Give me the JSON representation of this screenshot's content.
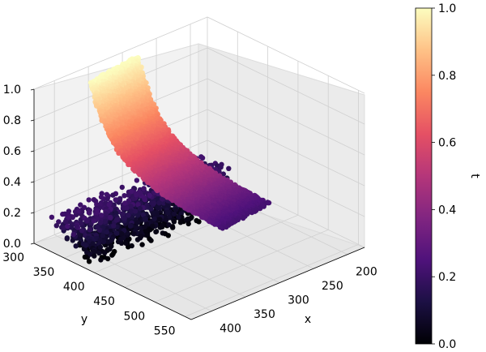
{
  "chart_data": {
    "type": "scatter",
    "projection": "3d",
    "title": "",
    "xlabel": "x",
    "ylabel": "y",
    "zlabel": "",
    "colorbar_label": "t",
    "colormap": "magma",
    "x_ticks": [
      "200",
      "250",
      "300",
      "350",
      "400"
    ],
    "y_ticks": [
      "300",
      "350",
      "400",
      "450",
      "500",
      "550"
    ],
    "z_ticks": [
      "0.0",
      "0.2",
      "0.4",
      "0.6",
      "0.8",
      "1.0"
    ],
    "colorbar_ticks": [
      "0.0",
      "0.2",
      "0.4",
      "0.6",
      "0.8",
      "1.0"
    ],
    "xlim": [
      175,
      430
    ],
    "ylim": [
      300,
      560
    ],
    "zlim": [
      0,
      1
    ],
    "clim": [
      0,
      1
    ],
    "grid": true,
    "description_of_data": "points colored by t; z equals t; surface rises from a flat dark band near z≈0 to a sheet near z≈1",
    "colormap_stops": [
      "#000004",
      "#1c1044",
      "#4f127b",
      "#812581",
      "#b5367a",
      "#e55064",
      "#fb8761",
      "#fec287",
      "#fcfdbf"
    ]
  }
}
